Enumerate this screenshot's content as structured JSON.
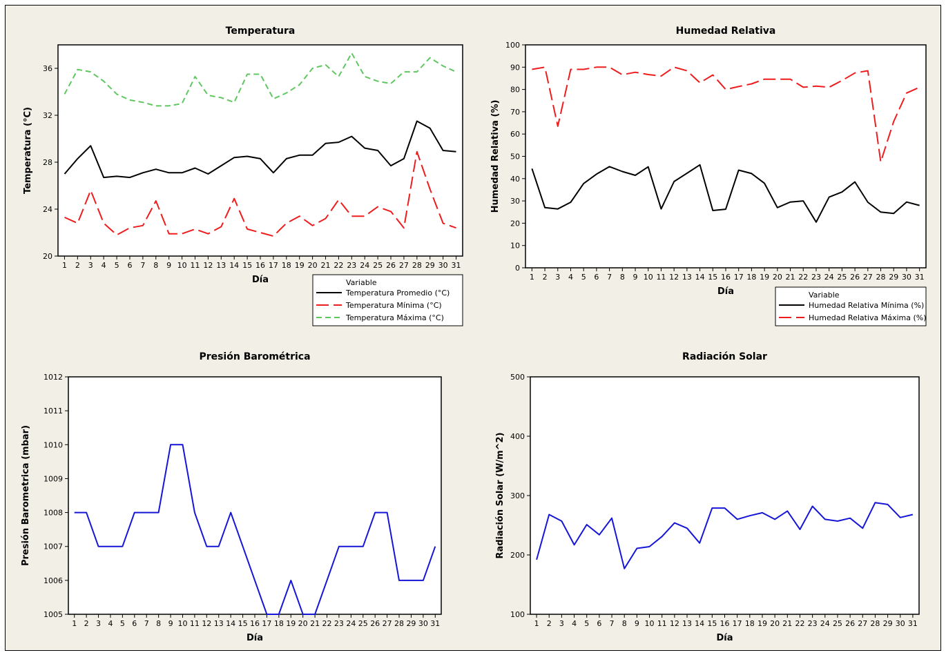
{
  "chart_data": [
    {
      "id": "temp",
      "type": "line",
      "title": "Temperatura",
      "xlabel": "Día",
      "ylabel": "Temperatura (°C)",
      "ylim": [
        20,
        38
      ],
      "yticks": [
        20,
        24,
        28,
        32,
        36
      ],
      "x": [
        1,
        2,
        3,
        4,
        5,
        6,
        7,
        8,
        9,
        10,
        11,
        12,
        13,
        14,
        15,
        16,
        17,
        18,
        19,
        20,
        21,
        22,
        23,
        24,
        25,
        26,
        27,
        28,
        29,
        30,
        31
      ],
      "legend_title": "Variable",
      "series": [
        {
          "name": "Temperatura Promedio (°C)",
          "color": "#000000",
          "dash": "solid",
          "values": [
            27.0,
            28.3,
            29.4,
            26.7,
            26.8,
            26.7,
            27.1,
            27.4,
            27.1,
            27.1,
            27.5,
            27.0,
            27.7,
            28.4,
            28.5,
            28.3,
            27.1,
            28.3,
            28.6,
            28.6,
            29.6,
            29.7,
            30.2,
            29.2,
            29.0,
            27.7,
            28.3,
            31.5,
            30.9,
            29.0,
            28.9
          ]
        },
        {
          "name": "Temperatura Mínima (°C)",
          "color": "#ee1c1c",
          "dash": "longdash",
          "values": [
            23.3,
            22.8,
            25.6,
            22.8,
            21.8,
            22.4,
            22.6,
            24.7,
            21.9,
            21.9,
            22.3,
            21.9,
            22.5,
            24.9,
            22.3,
            22.0,
            21.7,
            22.8,
            23.4,
            22.6,
            23.2,
            24.8,
            23.4,
            23.4,
            24.2,
            23.8,
            22.4,
            28.9,
            25.7,
            22.8,
            22.4
          ]
        },
        {
          "name": "Temperatura Máxima (°C)",
          "color": "#5fc75f",
          "dash": "dash",
          "values": [
            33.8,
            35.9,
            35.7,
            34.9,
            33.8,
            33.3,
            33.1,
            32.8,
            32.8,
            33.0,
            35.3,
            33.7,
            33.5,
            33.1,
            35.5,
            35.5,
            33.4,
            33.9,
            34.6,
            36.0,
            36.3,
            35.3,
            37.3,
            35.3,
            34.9,
            34.7,
            35.7,
            35.7,
            36.9,
            36.2,
            35.7
          ]
        }
      ]
    },
    {
      "id": "hum",
      "type": "line",
      "title": "Humedad Relativa",
      "xlabel": "Día",
      "ylabel": "Humedad Relativa (%)",
      "ylim": [
        0,
        100
      ],
      "yticks": [
        0,
        10,
        20,
        30,
        40,
        50,
        60,
        70,
        80,
        90,
        100
      ],
      "x": [
        1,
        2,
        3,
        4,
        5,
        6,
        7,
        8,
        9,
        10,
        11,
        12,
        13,
        14,
        15,
        16,
        17,
        18,
        19,
        20,
        21,
        22,
        23,
        24,
        25,
        26,
        27,
        28,
        29,
        30,
        31
      ],
      "legend_title": "Variable",
      "series": [
        {
          "name": "Humedad Relativa Mínima (%)",
          "color": "#000000",
          "dash": "solid",
          "values": [
            44.5,
            27.0,
            26.4,
            29.4,
            37.8,
            42.0,
            45.4,
            43.2,
            41.5,
            45.3,
            26.4,
            38.7,
            42.4,
            46.2,
            25.7,
            26.3,
            43.8,
            42.3,
            37.9,
            27.0,
            29.5,
            30.0,
            20.5,
            31.7,
            34.0,
            38.5,
            29.4,
            25.0,
            24.4,
            29.5,
            28.0
          ]
        },
        {
          "name": "Humedad Relativa Máxima (%)",
          "color": "#ee1c1c",
          "dash": "longdash",
          "values": [
            89.0,
            90.0,
            63.5,
            89.0,
            89.0,
            90.0,
            90.0,
            86.6,
            87.7,
            86.7,
            86.0,
            90.0,
            88.4,
            83.0,
            86.5,
            80.0,
            81.3,
            82.5,
            84.6,
            84.6,
            84.6,
            81.0,
            81.5,
            81.0,
            84.0,
            87.4,
            88.4,
            47.5,
            65.6,
            78.4,
            81.0
          ]
        }
      ]
    },
    {
      "id": "pres",
      "type": "line",
      "title": "Presión Barométrica",
      "xlabel": "Día",
      "ylabel": "Presión Barometrica (mbar)",
      "ylim": [
        1005,
        1012
      ],
      "yticks": [
        1005,
        1006,
        1007,
        1008,
        1009,
        1010,
        1011,
        1012
      ],
      "x": [
        1,
        2,
        3,
        4,
        5,
        6,
        7,
        8,
        9,
        10,
        11,
        12,
        13,
        14,
        15,
        16,
        17,
        18,
        19,
        20,
        21,
        22,
        23,
        24,
        25,
        26,
        27,
        28,
        29,
        30,
        31
      ],
      "series": [
        {
          "color": "#1515d8",
          "dash": "solid",
          "values": [
            1008,
            1008,
            1007,
            1007,
            1007,
            1008,
            1008,
            1008,
            1010,
            1010,
            1008,
            1007,
            1007,
            1008,
            1007,
            1006,
            1005,
            1005,
            1006,
            1005,
            1005,
            1006,
            1007,
            1007,
            1007,
            1008,
            1008,
            1006,
            1006,
            1006,
            1007
          ]
        }
      ]
    },
    {
      "id": "rad",
      "type": "line",
      "title": "Radiación Solar",
      "xlabel": "Día",
      "ylabel": "Radiación Solar (W/m^2)",
      "ylim": [
        100,
        500
      ],
      "yticks": [
        100,
        200,
        300,
        400,
        500
      ],
      "x": [
        1,
        2,
        3,
        4,
        5,
        6,
        7,
        8,
        9,
        10,
        11,
        12,
        13,
        14,
        15,
        16,
        17,
        18,
        19,
        20,
        21,
        22,
        23,
        24,
        25,
        26,
        27,
        28,
        29,
        30,
        31
      ],
      "series": [
        {
          "color": "#1515d8",
          "dash": "solid",
          "values": [
            192,
            268,
            257,
            217,
            251,
            234,
            262,
            177,
            211,
            214,
            231,
            254,
            245,
            220,
            279,
            279,
            260,
            266,
            271,
            260,
            274,
            243,
            282,
            260,
            257,
            262,
            245,
            288,
            285,
            263,
            268
          ]
        }
      ]
    }
  ]
}
